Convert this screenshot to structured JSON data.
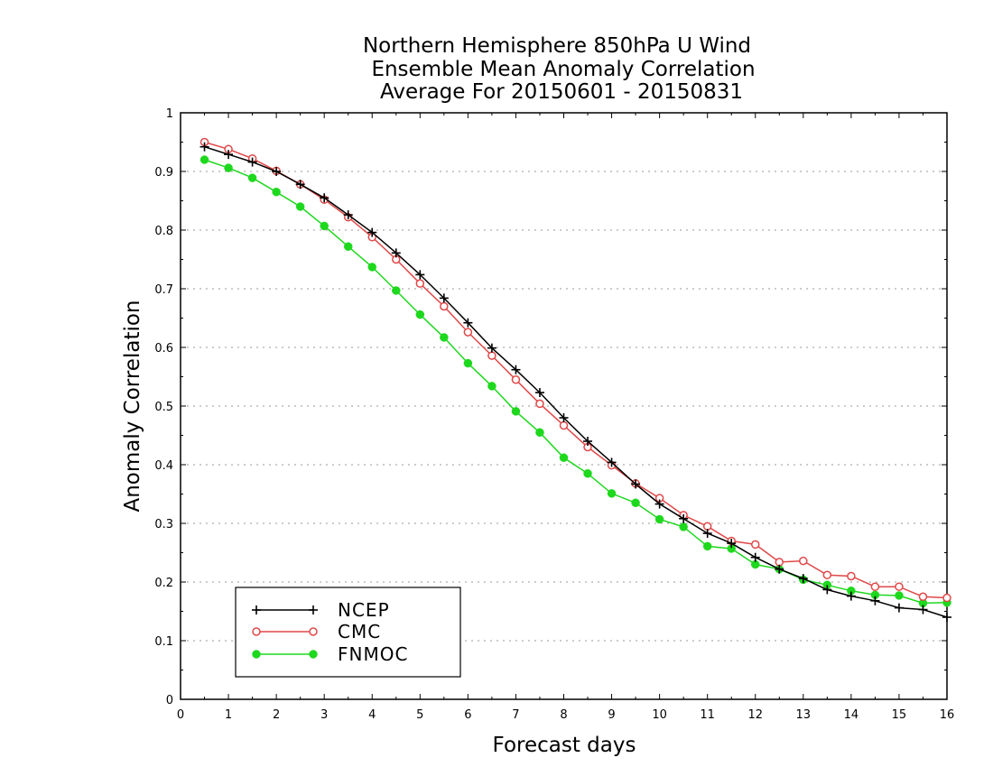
{
  "chart_data": {
    "type": "line",
    "title": [
      "Northern Hemisphere 850hPa U Wind",
      "Ensemble Mean Anomaly Correlation",
      "Average For 20150601 - 20150831"
    ],
    "xlabel": "Forecast days",
    "ylabel": "Anomaly Correlation",
    "xlim": [
      0,
      16
    ],
    "ylim": [
      0,
      1
    ],
    "xticks": [
      "0",
      "1",
      "2",
      "3",
      "4",
      "5",
      "6",
      "7",
      "8",
      "9",
      "10",
      "11",
      "12",
      "13",
      "14",
      "15",
      "16"
    ],
    "yticks": [
      "0",
      "0.1",
      "0.2",
      "0.3",
      "0.4",
      "0.5",
      "0.6",
      "0.7",
      "0.8",
      "0.9",
      "1"
    ],
    "grid": true,
    "legend_position": "bottom-left",
    "x": [
      0.5,
      1,
      1.5,
      2,
      2.5,
      3,
      3.5,
      4,
      4.5,
      5,
      5.5,
      6,
      6.5,
      7,
      7.5,
      8,
      8.5,
      9,
      9.5,
      10,
      10.5,
      11,
      11.5,
      12,
      12.5,
      13,
      13.5,
      14,
      14.5,
      15,
      15.5,
      16
    ],
    "series": [
      {
        "name": "NCEP",
        "color": "#000000",
        "marker": "plus",
        "values": [
          0.942,
          0.929,
          0.916,
          0.9,
          0.878,
          0.855,
          0.826,
          0.796,
          0.761,
          0.724,
          0.684,
          0.642,
          0.599,
          0.562,
          0.523,
          0.48,
          0.44,
          0.404,
          0.367,
          0.333,
          0.308,
          0.283,
          0.266,
          0.242,
          0.222,
          0.206,
          0.187,
          0.176,
          0.168,
          0.156,
          0.153,
          0.14
        ]
      },
      {
        "name": "CMC",
        "color": "#e04848",
        "marker": "open-circle",
        "values": [
          0.95,
          0.938,
          0.922,
          0.901,
          0.878,
          0.852,
          0.822,
          0.788,
          0.75,
          0.709,
          0.67,
          0.626,
          0.586,
          0.545,
          0.504,
          0.467,
          0.43,
          0.399,
          0.368,
          0.343,
          0.314,
          0.295,
          0.27,
          0.264,
          0.234,
          0.236,
          0.212,
          0.21,
          0.192,
          0.192,
          0.175,
          0.173
        ]
      },
      {
        "name": "FNMOC",
        "color": "#1ed81e",
        "marker": "filled-circle",
        "values": [
          0.92,
          0.906,
          0.889,
          0.865,
          0.84,
          0.807,
          0.772,
          0.737,
          0.697,
          0.656,
          0.617,
          0.573,
          0.534,
          0.491,
          0.455,
          0.412,
          0.385,
          0.351,
          0.335,
          0.307,
          0.294,
          0.261,
          0.257,
          0.23,
          0.222,
          0.204,
          0.195,
          0.185,
          0.178,
          0.177,
          0.164,
          0.165
        ]
      }
    ]
  }
}
